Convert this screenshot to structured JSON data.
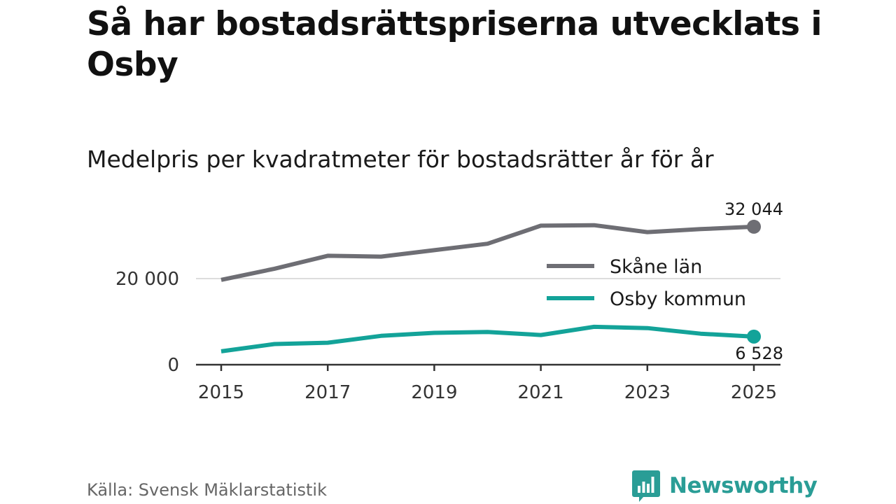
{
  "title": "Så har bostadsrättspriserna utvecklats i Osby",
  "subtitle": "Medelpris per kvadratmeter för bostadsrätter år för år",
  "source": "Källa: Svensk Mäklarstatistik",
  "brand": "Newsworthy",
  "colors": {
    "skane": "#6e6e74",
    "osby": "#13a399",
    "gridline": "#dddddd",
    "axis": "#333333",
    "brand": "#2a9d96"
  },
  "chart_data": {
    "type": "line",
    "title": "Medelpris per kvadratmeter för bostadsrätter år för år",
    "xlabel": "",
    "ylabel": "",
    "x": [
      2015,
      2016,
      2017,
      2018,
      2019,
      2020,
      2021,
      2022,
      2023,
      2024,
      2025
    ],
    "xticks": [
      "2015",
      "2017",
      "2019",
      "2021",
      "2023",
      "2025"
    ],
    "yticks": [
      {
        "value": 0,
        "label": "0"
      },
      {
        "value": 20000,
        "label": "20 000"
      }
    ],
    "ylim": [
      0,
      34000
    ],
    "grid": true,
    "legend_position": "right",
    "series": [
      {
        "name": "Skåne län",
        "key": "skane",
        "values": [
          19700,
          22300,
          25300,
          25100,
          26600,
          28100,
          32300,
          32400,
          30800,
          31500,
          32044
        ],
        "end_label": "32 044"
      },
      {
        "name": "Osby kommun",
        "key": "osby",
        "values": [
          3100,
          4800,
          5100,
          6700,
          7400,
          7600,
          6900,
          8800,
          8500,
          7200,
          6528
        ],
        "end_label": "6 528"
      }
    ]
  }
}
